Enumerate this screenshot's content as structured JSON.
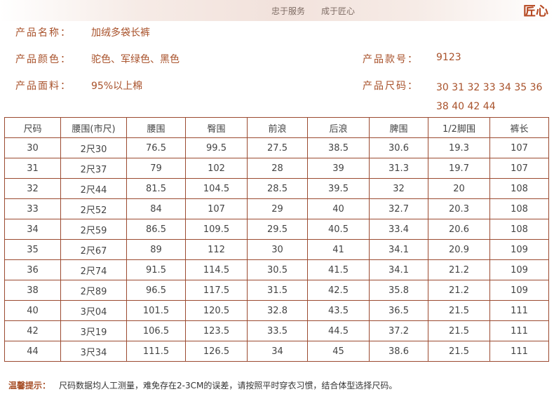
{
  "header": {
    "slogan_left": "忠于服务",
    "slogan_right": "成于匠心",
    "brand": "匠心"
  },
  "product": {
    "name_label": "产品名称：",
    "name_value": "加绒多袋长裤",
    "color_label": "产品颜色：",
    "color_value": "驼色、军绿色、黑色",
    "model_label": "产品款号：",
    "model_value": "9123",
    "fabric_label": "产品面料：",
    "fabric_value": "95%以上棉",
    "size_label": "产品尺码：",
    "size_value": "30 31 32 33 34 35 36 38 40 42 44"
  },
  "table": {
    "headers": [
      "尺码",
      "腰围(市尺)",
      "腰围",
      "臀围",
      "前浪",
      "后浪",
      "脾围",
      "1/2脚围",
      "裤长"
    ],
    "rows": [
      [
        "30",
        "2尺30",
        "76.5",
        "99.5",
        "27.5",
        "38.5",
        "30.6",
        "19.3",
        "107"
      ],
      [
        "31",
        "2尺37",
        "79",
        "102",
        "28",
        "39",
        "31.3",
        "19.7",
        "107"
      ],
      [
        "32",
        "2尺44",
        "81.5",
        "104.5",
        "28.5",
        "39.5",
        "32",
        "20",
        "108"
      ],
      [
        "33",
        "2尺52",
        "84",
        "107",
        "29",
        "40",
        "32.7",
        "20.3",
        "108"
      ],
      [
        "34",
        "2尺59",
        "86.5",
        "109.5",
        "29.5",
        "40.5",
        "33.4",
        "20.6",
        "108"
      ],
      [
        "35",
        "2尺67",
        "89",
        "112",
        "30",
        "41",
        "34.1",
        "20.9",
        "109"
      ],
      [
        "36",
        "2尺74",
        "91.5",
        "114.5",
        "30.5",
        "41.5",
        "34.1",
        "21.2",
        "109"
      ],
      [
        "38",
        "2尺89",
        "96.5",
        "117.5",
        "31.5",
        "42.5",
        "35.8",
        "21.2",
        "109"
      ],
      [
        "40",
        "3尺04",
        "101.5",
        "120.5",
        "32.8",
        "43.5",
        "36.5",
        "21.5",
        "111"
      ],
      [
        "42",
        "3尺19",
        "106.5",
        "123.5",
        "33.5",
        "44.5",
        "37.2",
        "21.5",
        "111"
      ],
      [
        "44",
        "3尺34",
        "111.5",
        "126.5",
        "34",
        "45",
        "38.6",
        "21.5",
        "111"
      ]
    ]
  },
  "footer": {
    "label": "温馨提示：",
    "text": "尺码数据均人工测量，难免存在2-3CM的误差，请按照平时穿衣习惯，结合体型选择尺码。"
  },
  "colors": {
    "accent": "#a8512a",
    "border": "#9b4a30",
    "brand": "#b54720"
  }
}
